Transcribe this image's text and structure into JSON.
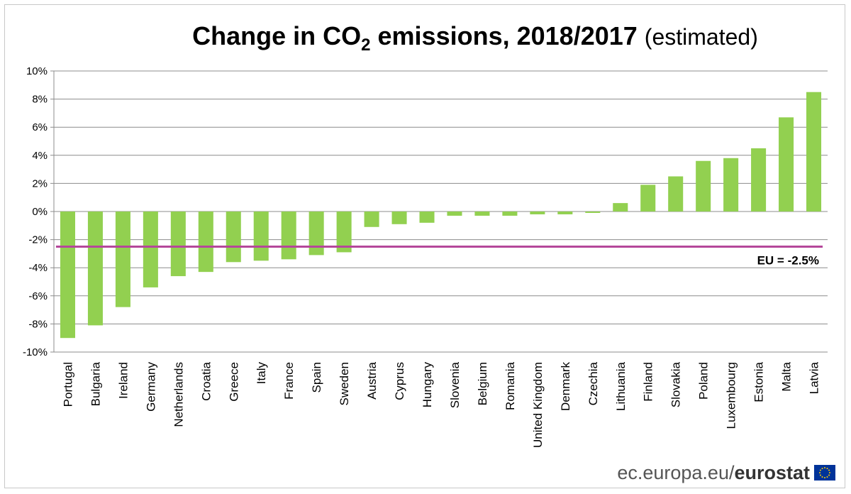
{
  "title": {
    "main_prefix": "Change in CO",
    "subscript": "2",
    "main_suffix": " emissions, 2018/2017",
    "qualifier": "(estimated)"
  },
  "colors": {
    "bar": "#92D050",
    "eu_line": "#B5479A",
    "grid": "#8c8c8c",
    "text": "#000000"
  },
  "chart_data": {
    "type": "bar",
    "categories": [
      "Portugal",
      "Bulgaria",
      "Ireland",
      "Germany",
      "Netherlands",
      "Croatia",
      "Greece",
      "Italy",
      "France",
      "Spain",
      "Sweden",
      "Austria",
      "Cyprus",
      "Hungary",
      "Slovenia",
      "Belgium",
      "Romania",
      "United Kingdom",
      "Denmark",
      "Czechia",
      "Lithuania",
      "Finland",
      "Slovakia",
      "Poland",
      "Luxembourg",
      "Estonia",
      "Malta",
      "Latvia"
    ],
    "values": [
      -9.0,
      -8.1,
      -6.8,
      -5.4,
      -4.6,
      -4.3,
      -3.6,
      -3.5,
      -3.4,
      -3.1,
      -2.9,
      -1.1,
      -0.9,
      -0.8,
      -0.3,
      -0.3,
      -0.3,
      -0.2,
      -0.2,
      -0.1,
      0.6,
      1.9,
      2.5,
      3.6,
      3.8,
      4.5,
      6.7,
      8.5
    ],
    "ylim": [
      -10,
      10
    ],
    "yticks": [
      -10,
      -8,
      -6,
      -4,
      -2,
      0,
      2,
      4,
      6,
      8,
      10
    ],
    "ytick_labels": [
      "-10%",
      "-8%",
      "-6%",
      "-4%",
      "-2%",
      "0%",
      "2%",
      "4%",
      "6%",
      "8%",
      "10%"
    ],
    "reference_line": {
      "value": -2.5,
      "label": "EU = -2.5%"
    },
    "grid": true
  },
  "footer": {
    "site": "ec.europa.eu/",
    "brand": "eurostat"
  }
}
